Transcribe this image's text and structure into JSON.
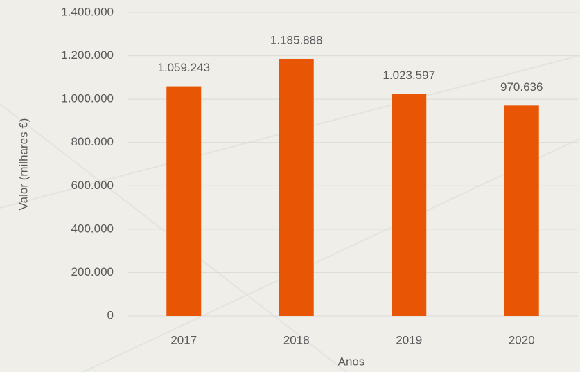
{
  "chart_data": {
    "type": "bar",
    "categories": [
      "2017",
      "2018",
      "2019",
      "2020"
    ],
    "values": [
      1059243,
      1185888,
      1023597,
      970636
    ],
    "value_labels": [
      "1.059.243",
      "1.185.888",
      "1.023.597",
      "970.636"
    ],
    "color": "#e85605",
    "xlabel": "Anos",
    "ylabel": "Valor (milhares €)",
    "ylim": [
      0,
      1400000
    ],
    "yticks": [
      0,
      {
        "value": 200000,
        "label": "200.000"
      },
      {
        "value": 400000,
        "label": "400.000"
      },
      {
        "value": 600000,
        "label": "600.000"
      },
      {
        "value": 800000,
        "label": "800.000"
      },
      {
        "value": 1000000,
        "label": "1.000.000"
      },
      {
        "value": 1200000,
        "label": "1.200.000"
      },
      {
        "value": 1400000,
        "label": "1.400.000"
      }
    ],
    "grid": true
  }
}
